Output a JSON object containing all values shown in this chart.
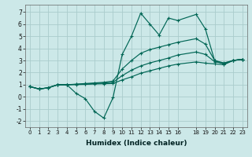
{
  "xlabel": "Humidex (Indice chaleur)",
  "xlim": [
    -0.5,
    23.5
  ],
  "ylim": [
    -2.5,
    7.6
  ],
  "xticks": [
    0,
    1,
    2,
    3,
    4,
    5,
    6,
    7,
    8,
    9,
    10,
    11,
    12,
    13,
    14,
    15,
    16,
    18,
    19,
    20,
    21,
    22,
    23
  ],
  "yticks": [
    -2,
    -1,
    0,
    1,
    2,
    3,
    4,
    5,
    6,
    7
  ],
  "bg_color": "#cce8e8",
  "grid_color": "#aacccc",
  "line_color": "#006655",
  "x": [
    0,
    1,
    2,
    3,
    4,
    5,
    6,
    7,
    8,
    9,
    10,
    11,
    12,
    13,
    14,
    15,
    16,
    18,
    19,
    20,
    21,
    22,
    23
  ],
  "series1_y": [
    0.85,
    0.65,
    0.75,
    1.0,
    1.0,
    0.3,
    -0.15,
    -1.2,
    -1.75,
    -0.07,
    3.5,
    5.0,
    6.9,
    6.0,
    5.1,
    6.5,
    6.3,
    6.8,
    5.6,
    3.0,
    2.7,
    3.0,
    3.1
  ],
  "series2_y": [
    0.85,
    0.65,
    0.75,
    1.0,
    1.0,
    1.05,
    1.1,
    1.15,
    1.2,
    1.3,
    2.3,
    3.0,
    3.6,
    3.9,
    4.1,
    4.3,
    4.5,
    4.8,
    4.35,
    3.0,
    2.8,
    3.0,
    3.1
  ],
  "series3_y": [
    0.85,
    0.65,
    0.75,
    1.0,
    1.0,
    1.03,
    1.06,
    1.1,
    1.15,
    1.2,
    1.75,
    2.2,
    2.55,
    2.8,
    3.0,
    3.2,
    3.45,
    3.7,
    3.5,
    2.9,
    2.75,
    3.0,
    3.1
  ],
  "series4_y": [
    0.85,
    0.65,
    0.75,
    1.0,
    1.0,
    1.01,
    1.03,
    1.06,
    1.08,
    1.1,
    1.4,
    1.65,
    1.95,
    2.15,
    2.35,
    2.55,
    2.7,
    2.88,
    2.78,
    2.72,
    2.65,
    3.0,
    3.1
  ]
}
